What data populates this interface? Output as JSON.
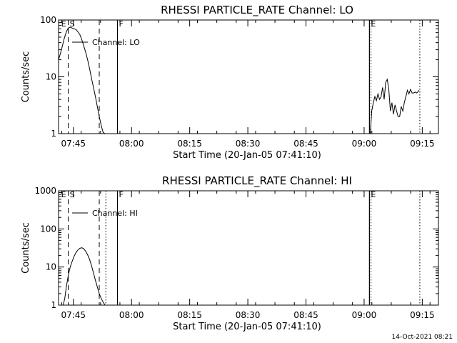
{
  "footer": {
    "timestamp": "14-Oct-2021 08:21"
  },
  "colors": {
    "background": "#ffffff",
    "foreground": "#000000"
  },
  "chart_data": [
    {
      "type": "line",
      "title": "RHESSI PARTICLE_RATE Channel: LO",
      "xlabel": "Start Time (20-Jan-05 07:41:10)",
      "ylabel": "Counts/sec",
      "yscale": "log",
      "ylim": [
        1,
        100
      ],
      "xlim_minutes": [
        0,
        98
      ],
      "yticks": [
        1,
        10,
        100
      ],
      "ytick_labels": [
        "1",
        "10",
        "100"
      ],
      "xtick_labels": [
        "07:45",
        "08:00",
        "08:15",
        "08:30",
        "08:45",
        "09:00",
        "09:15"
      ],
      "xticks_minutes": [
        3.83,
        18.83,
        33.83,
        48.83,
        63.83,
        78.83,
        93.83
      ],
      "legend": {
        "label": "Channel: LO",
        "placement": "upper-left"
      },
      "markers": [
        {
          "label": "E",
          "x": 0.3,
          "style": "none"
        },
        {
          "label": "S",
          "x": 2.5,
          "style": "dashed"
        },
        {
          "label": "",
          "x": 10.5,
          "style": "dashed"
        },
        {
          "label": "F",
          "x": 15.2,
          "style": "solid"
        },
        {
          "label": "E",
          "x": 80.2,
          "style": "solid"
        },
        {
          "label": "",
          "x": 80.6,
          "style": "dotted"
        },
        {
          "label": "",
          "x": 93.2,
          "style": "dotted"
        }
      ],
      "series": [
        {
          "name": "Channel: LO",
          "segments": [
            {
              "x": [
                0,
                0.5,
                1,
                1.5,
                2,
                2.5,
                3,
                3.5,
                4,
                4.5,
                5,
                5.5,
                6,
                6.5,
                7,
                7.5,
                8,
                8.5,
                9,
                9.5,
                10,
                10.5,
                11,
                11.5,
                12
              ],
              "y": [
                20,
                26,
                35,
                48,
                62,
                72,
                75,
                72,
                70,
                68,
                62,
                55,
                45,
                35,
                27,
                20,
                14,
                9.5,
                6.5,
                4.5,
                3,
                2,
                1.4,
                1.05,
                1
              ]
            },
            {
              "x": [
                80.4,
                80.8,
                81.2,
                81.6,
                82,
                82.4,
                82.8,
                83.2,
                83.6,
                84,
                84.4,
                84.8,
                85.2,
                85.6,
                86,
                86.4,
                86.8,
                87.2,
                87.6,
                88,
                88.4,
                88.8,
                89.2,
                89.6,
                90,
                90.4,
                90.8,
                91.2,
                91.6,
                92,
                92.4,
                92.8,
                93
              ],
              "y": [
                1,
                2.5,
                3.5,
                4.5,
                3.8,
                5,
                4,
                4.5,
                6.5,
                4,
                8,
                9,
                6,
                2.5,
                3.5,
                2.2,
                3.2,
                2.5,
                2,
                2,
                3,
                2.5,
                3.5,
                4.5,
                5.8,
                5,
                6,
                5.2,
                5.2,
                5.4,
                5.2,
                5.5,
                5.8
              ]
            }
          ]
        }
      ]
    },
    {
      "type": "line",
      "title": "RHESSI PARTICLE_RATE Channel: HI",
      "xlabel": "Start Time (20-Jan-05 07:41:10)",
      "ylabel": "Counts/sec",
      "yscale": "log",
      "ylim": [
        1,
        1000
      ],
      "xlim_minutes": [
        0,
        98
      ],
      "yticks": [
        1,
        10,
        100,
        1000
      ],
      "ytick_labels": [
        "1",
        "10",
        "100",
        "1000"
      ],
      "xtick_labels": [
        "07:45",
        "08:00",
        "08:15",
        "08:30",
        "08:45",
        "09:00",
        "09:15"
      ],
      "xticks_minutes": [
        3.83,
        18.83,
        33.83,
        48.83,
        63.83,
        78.83,
        93.83
      ],
      "legend": {
        "label": "Channel: HI",
        "placement": "upper-left"
      },
      "markers": [
        {
          "label": "E",
          "x": 0.3,
          "style": "none"
        },
        {
          "label": "S",
          "x": 2.5,
          "style": "dashed"
        },
        {
          "label": "",
          "x": 10.5,
          "style": "dashed"
        },
        {
          "label": "",
          "x": 12.2,
          "style": "dotted"
        },
        {
          "label": "F",
          "x": 15.2,
          "style": "solid"
        },
        {
          "label": "E",
          "x": 80.2,
          "style": "solid"
        },
        {
          "label": "",
          "x": 80.6,
          "style": "dotted"
        },
        {
          "label": "",
          "x": 93.2,
          "style": "dotted"
        }
      ],
      "series": [
        {
          "name": "Channel: HI",
          "segments": [
            {
              "x": [
                1.2,
                1.6,
                2,
                2.5,
                3,
                3.5,
                4,
                4.5,
                5,
                5.5,
                6,
                6.5,
                7,
                7.5,
                8,
                8.5,
                9,
                9.5,
                10,
                10.5,
                11,
                11.5,
                12
              ],
              "y": [
                1,
                1.5,
                3,
                6,
                10,
                14,
                19,
                24,
                28,
                31,
                32,
                30,
                26,
                21,
                16,
                11,
                7,
                4.5,
                3,
                2,
                1.5,
                1.2,
                1
              ]
            }
          ]
        }
      ]
    }
  ]
}
